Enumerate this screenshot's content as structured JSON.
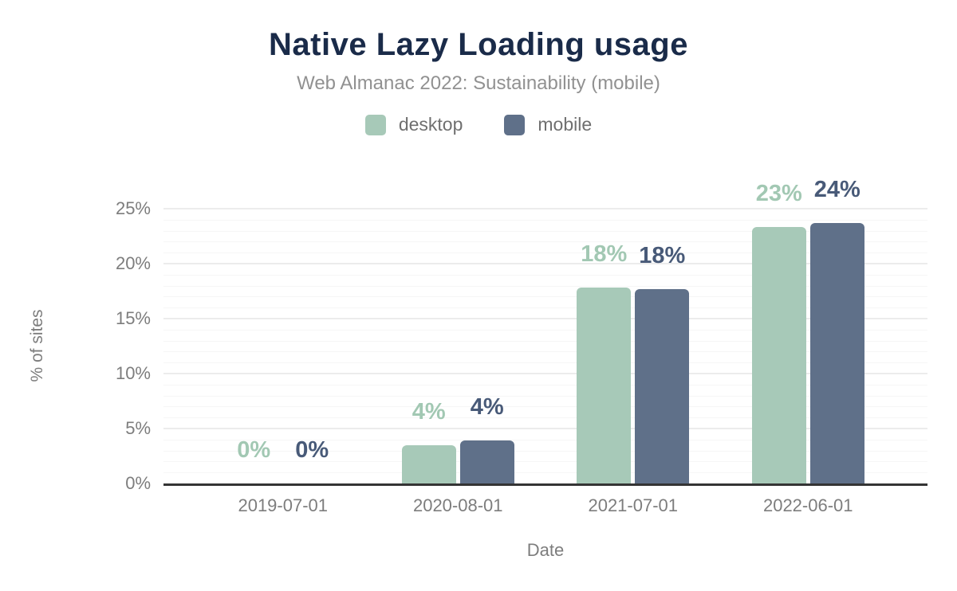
{
  "header": {
    "title": "Native Lazy Loading usage",
    "subtitle": "Web Almanac 2022: Sustainability (mobile)"
  },
  "chart_data": {
    "type": "bar",
    "title": "Native Lazy Loading usage",
    "subtitle": "Web Almanac 2022: Sustainability (mobile)",
    "categories": [
      "2019-07-01",
      "2020-08-01",
      "2021-07-01",
      "2022-06-01"
    ],
    "series": [
      {
        "name": "desktop",
        "color": "#a7c9b8",
        "label_color": "#a2c8b3",
        "values": [
          0,
          3.5,
          17.8,
          23.3
        ],
        "labels": [
          "0%",
          "4%",
          "18%",
          "23%"
        ]
      },
      {
        "name": "mobile",
        "color": "#5f7089",
        "label_color": "#485a78",
        "values": [
          0,
          3.9,
          17.7,
          23.7
        ],
        "labels": [
          "0%",
          "4%",
          "18%",
          "24%"
        ]
      }
    ],
    "xlabel": "Date",
    "ylabel": "% of sites",
    "ylim": [
      0,
      25
    ],
    "y_ticks": [
      "0%",
      "5%",
      "10%",
      "15%",
      "20%",
      "25%"
    ],
    "y_major_step": 5,
    "y_minor_step": 1,
    "grid": true,
    "legend_position": "top"
  },
  "colors": {
    "title": "#1a2b49",
    "subtitle": "#919191",
    "axis_text": "#7d7d7d",
    "axis_line": "#343434",
    "grid_major": "#ececec",
    "grid_minor": "#f6f6f6",
    "background": "#ffffff"
  }
}
